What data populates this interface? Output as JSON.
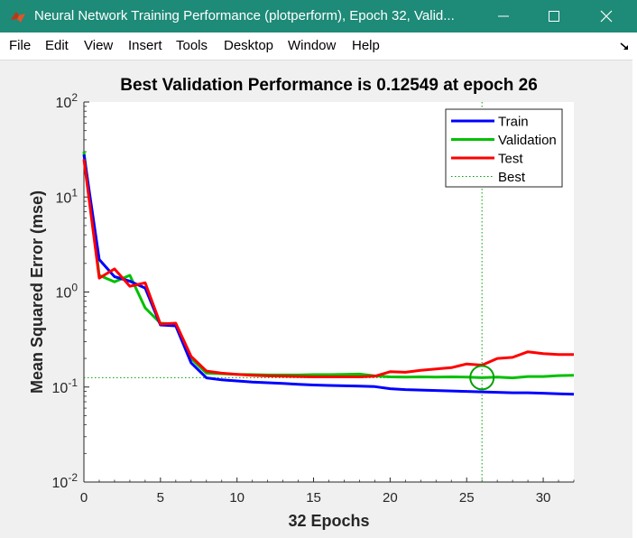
{
  "window": {
    "title": "Neural Network Training Performance (plotperform), Epoch 32, Valid...",
    "minimize_icon": "minimize-icon",
    "maximize_icon": "maximize-icon",
    "close_icon": "close-icon"
  },
  "menu": {
    "items": [
      "File",
      "Edit",
      "View",
      "Insert",
      "Tools",
      "Desktop",
      "Window",
      "Help"
    ]
  },
  "colors": {
    "titlebar": "#1e8a78",
    "train": "#0000ff",
    "validation": "#00c000",
    "test": "#ff0000",
    "best": "#00a000"
  },
  "chart_data": {
    "type": "line",
    "title": "Best Validation Performance is 0.12549 at epoch 26",
    "xlabel": "32 Epochs",
    "ylabel": "Mean Squared Error  (mse)",
    "xlim": [
      0,
      32
    ],
    "ylim": [
      0.01,
      100
    ],
    "yscale": "log",
    "xticks": [
      0,
      5,
      10,
      15,
      20,
      25,
      30
    ],
    "yticks": [
      0.01,
      0.1,
      1,
      10,
      100
    ],
    "ytick_labels": [
      {
        "base": "10",
        "exp": "-2"
      },
      {
        "base": "10",
        "exp": "-1"
      },
      {
        "base": "10",
        "exp": "0"
      },
      {
        "base": "10",
        "exp": "1"
      },
      {
        "base": "10",
        "exp": "2"
      }
    ],
    "legend_position": "top-right",
    "series": [
      {
        "name": "Train",
        "x": [
          0,
          1,
          2,
          3,
          4,
          5,
          6,
          7,
          8,
          9,
          10,
          11,
          12,
          13,
          14,
          15,
          16,
          17,
          18,
          19,
          20,
          21,
          22,
          23,
          24,
          25,
          26,
          27,
          28,
          29,
          30,
          31,
          32
        ],
        "y": [
          28,
          2.2,
          1.45,
          1.3,
          1.1,
          0.45,
          0.44,
          0.18,
          0.125,
          0.119,
          0.116,
          0.113,
          0.111,
          0.109,
          0.107,
          0.105,
          0.104,
          0.103,
          0.102,
          0.101,
          0.096,
          0.094,
          0.093,
          0.092,
          0.091,
          0.09,
          0.089,
          0.088,
          0.087,
          0.087,
          0.086,
          0.085,
          0.084
        ]
      },
      {
        "name": "Validation",
        "x": [
          0,
          1,
          2,
          3,
          4,
          5,
          6,
          7,
          8,
          9,
          10,
          11,
          12,
          13,
          14,
          15,
          16,
          17,
          18,
          19,
          20,
          21,
          22,
          23,
          24,
          25,
          26,
          27,
          28,
          29,
          30,
          31,
          32
        ],
        "y": [
          30,
          1.5,
          1.28,
          1.5,
          0.68,
          0.47,
          0.46,
          0.2,
          0.14,
          0.138,
          0.136,
          0.135,
          0.134,
          0.134,
          0.134,
          0.135,
          0.135,
          0.136,
          0.137,
          0.131,
          0.128,
          0.127,
          0.128,
          0.127,
          0.128,
          0.127,
          0.1255,
          0.127,
          0.125,
          0.129,
          0.129,
          0.132,
          0.133
        ]
      },
      {
        "name": "Test",
        "x": [
          0,
          1,
          2,
          3,
          4,
          5,
          6,
          7,
          8,
          9,
          10,
          11,
          12,
          13,
          14,
          15,
          16,
          17,
          18,
          19,
          20,
          21,
          22,
          23,
          24,
          25,
          26,
          27,
          28,
          29,
          30,
          31,
          32
        ],
        "y": [
          25,
          1.4,
          1.75,
          1.15,
          1.25,
          0.46,
          0.47,
          0.21,
          0.147,
          0.14,
          0.136,
          0.133,
          0.131,
          0.13,
          0.129,
          0.128,
          0.128,
          0.128,
          0.128,
          0.13,
          0.145,
          0.143,
          0.15,
          0.155,
          0.16,
          0.175,
          0.17,
          0.2,
          0.205,
          0.235,
          0.225,
          0.22,
          0.22
        ]
      }
    ],
    "best": {
      "name": "Best",
      "epoch": 26,
      "value": 0.12549
    }
  }
}
